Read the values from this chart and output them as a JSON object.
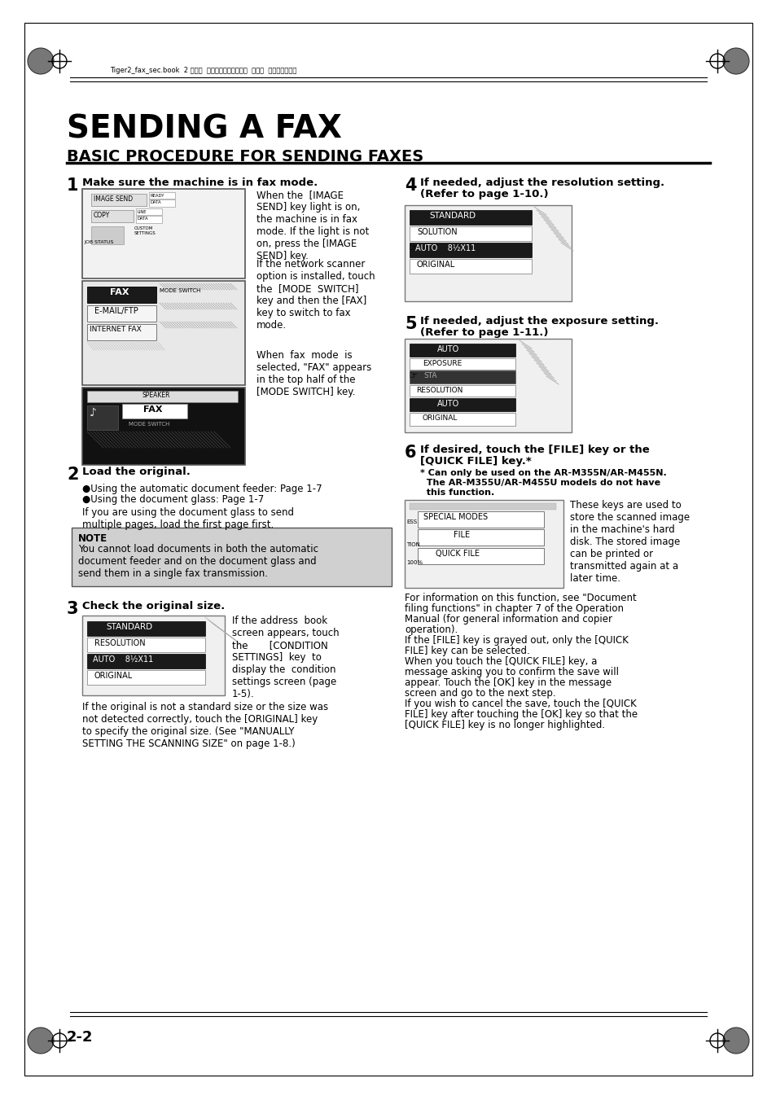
{
  "title": "SENDING A FAX",
  "subtitle": "BASIC PROCEDURE FOR SENDING FAXES",
  "bg_color": "#ffffff",
  "text_color": "#000000",
  "header_text": "Tiger2_fax_sec.book  2 ページ  ２００４年９月１６日  木曜日  午前８時５３分",
  "page_number": "2-2",
  "step1_heading": "Make sure the machine is in fax mode.",
  "step1_text1": "When the  [IMAGE\nSEND] key light is on,\nthe machine is in fax\nmode. If the light is not\non, press the [IMAGE\nSEND] key.",
  "step1_text2": "If the network scanner\noption is installed, touch\nthe  [MODE  SWITCH]\nkey and then the [FAX]\nkey to switch to fax\nmode.",
  "step1_text3": "When  fax  mode  is\nselected, \"FAX\" appears\nin the top half of the\n[MODE SWITCH] key.",
  "step2_heading": "Load the original.",
  "step2_bullet1": "●Using the automatic document feeder: Page 1-7",
  "step2_bullet2": "●Using the document glass: Page 1-7",
  "step2_text": "If you are using the document glass to send\nmultiple pages, load the first page first.",
  "note_heading": "NOTE",
  "note_text": "You cannot load documents in both the automatic\ndocument feeder and on the document glass and\nsend them in a single fax transmission.",
  "step3_heading": "Check the original size.",
  "step3_text": "If the address  book\nscreen appears, touch\nthe       [CONDITION\nSETTINGS]  key  to\ndisplay the  condition\nsettings screen (page\n1-5).",
  "step3_text2": "If the original is not a standard size or the size was\nnot detected correctly, touch the [ORIGINAL] key\nto specify the original size. (See \"MANUALLY\nSETTING THE SCANNING SIZE\" on page 1-8.)",
  "step4_h1": "If needed, adjust the resolution setting.",
  "step4_h2": "(Refer to page 1-10.)",
  "step5_h1": "If needed, adjust the exposure setting.",
  "step5_h2": "(Refer to page 1-11.)",
  "step6_h1": "If desired, touch the [FILE] key or the",
  "step6_h2": "[QUICK FILE] key.*",
  "step6_note1": "* Can only be used on the AR-M355N/AR-M455N.",
  "step6_note2": "  The AR-M355U/AR-M455U models do not have",
  "step6_note3": "  this function.",
  "step6_text1": "These keys are used to\nstore the scanned image\nin the machine's hard\ndisk. The stored image\ncan be printed or\ntransmitted again at a\nlater time.",
  "step6_text2a": "For information on this function, see \"Document",
  "step6_text2b": "filing functions\" in chapter 7 of the Operation",
  "step6_text2c": "Manual (for general information and copier",
  "step6_text2d": "operation).",
  "step6_text2e": "If the [FILE] key is grayed out, only the [QUICK",
  "step6_text2f": "FILE] key can be selected.",
  "step6_text2g": "When you touch the [QUICK FILE] key, a",
  "step6_text2h": "message asking you to confirm the save will",
  "step6_text2i": "appear. Touch the [OK] key in the message",
  "step6_text2j": "screen and go to the next step.",
  "step6_text2k": "If you wish to cancel the save, touch the [QUICK",
  "step6_text2l": "FILE] key after touching the [OK] key so that the",
  "step6_text2m": "[QUICK FILE] key is no longer highlighted."
}
